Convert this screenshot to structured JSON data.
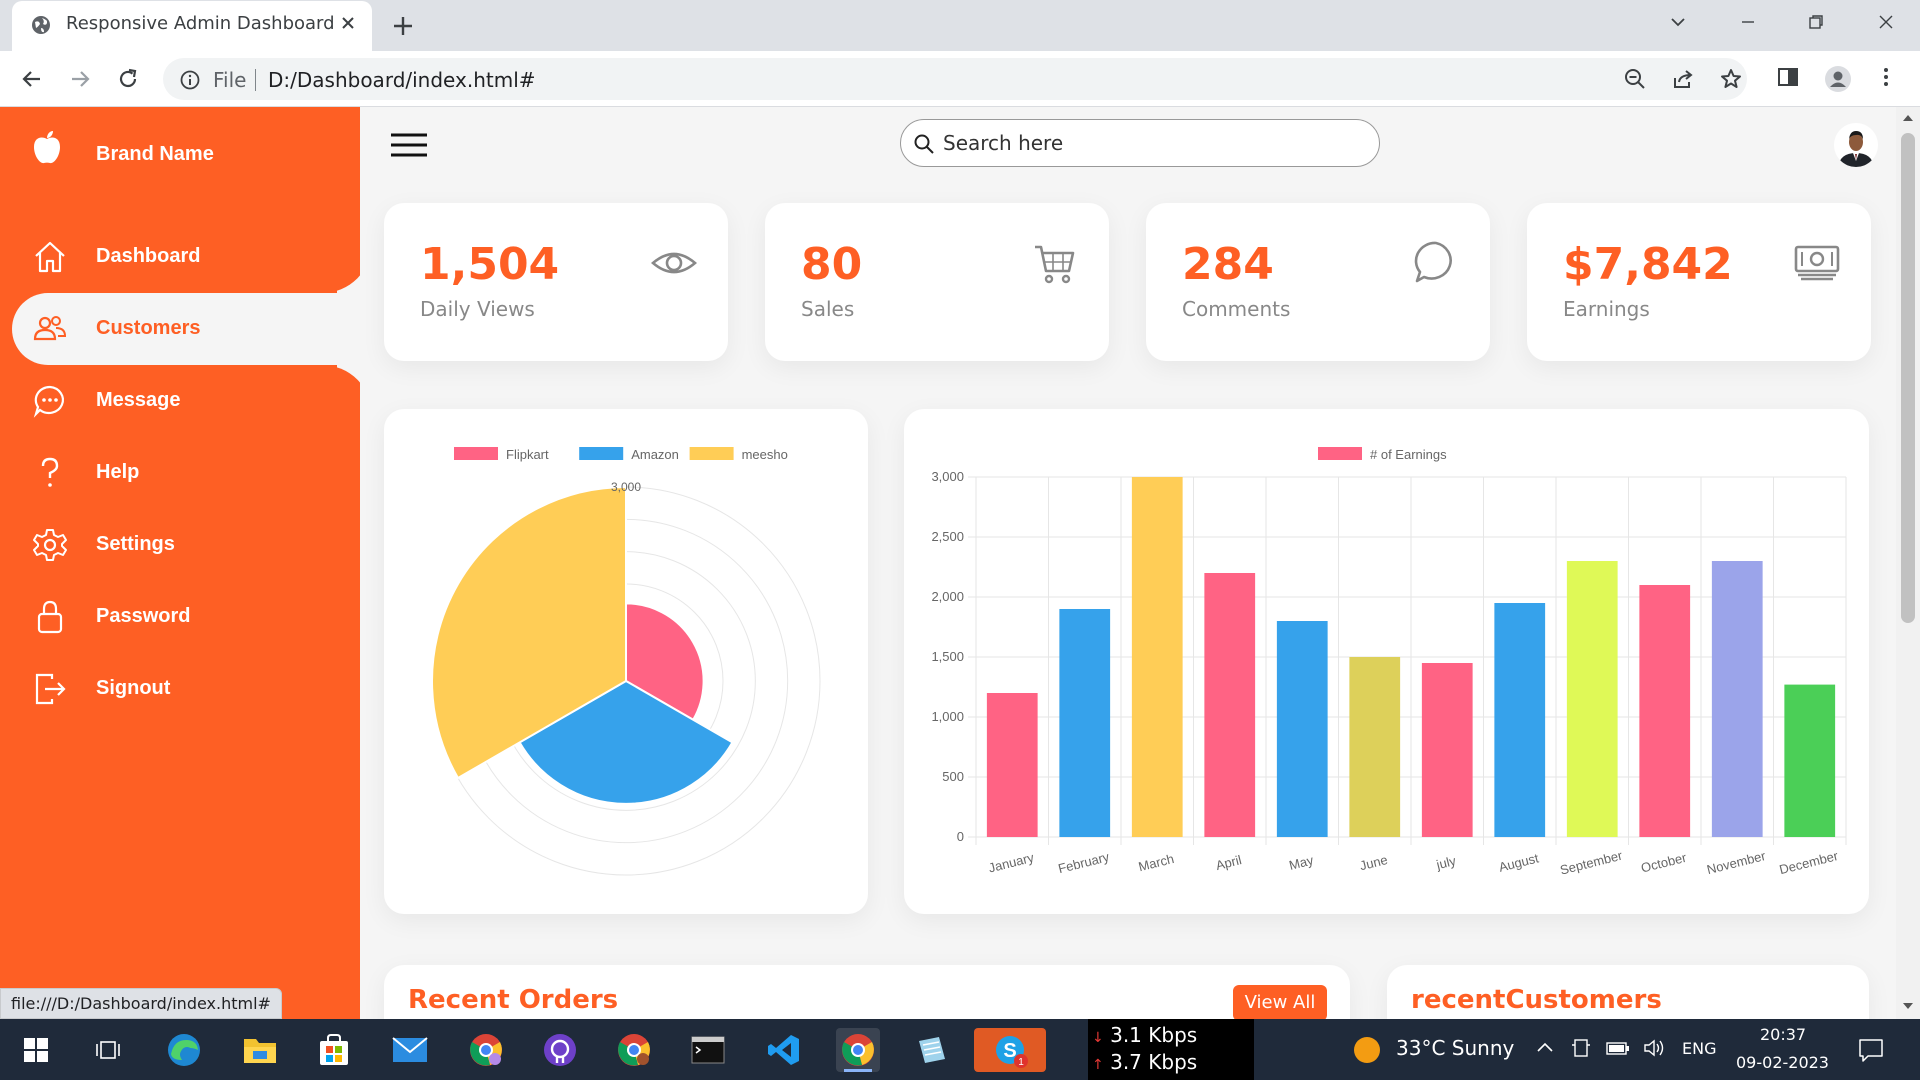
{
  "browser": {
    "tab_title": "Responsive Admin Dashboard",
    "url_scheme": "File",
    "url": "D:/Dashboard/index.html#",
    "status_url": "file:///D:/Dashboard/index.html#"
  },
  "sidebar": {
    "brand": "Brand Name",
    "items": [
      {
        "label": "Dashboard",
        "icon": "home-icon"
      },
      {
        "label": "Customers",
        "icon": "people-icon"
      },
      {
        "label": "Message",
        "icon": "chat-icon"
      },
      {
        "label": "Help",
        "icon": "help-icon"
      },
      {
        "label": "Settings",
        "icon": "settings-icon"
      },
      {
        "label": "Password",
        "icon": "lock-icon"
      },
      {
        "label": "Signout",
        "icon": "signout-icon"
      }
    ],
    "active_item": "Customers"
  },
  "topbar": {
    "search_placeholder": "Search here"
  },
  "cards": [
    {
      "number": "1,504",
      "name": "Daily Views",
      "icon": "eye-icon"
    },
    {
      "number": "80",
      "name": "Sales",
      "icon": "cart-icon"
    },
    {
      "number": "284",
      "name": "Comments",
      "icon": "comment-icon"
    },
    {
      "number": "$7,842",
      "name": "Earnings",
      "icon": "cash-icon"
    }
  ],
  "chart_data": [
    {
      "type": "pie",
      "subtype": "polar-area",
      "categories": [
        "Flipkart",
        "Amazon",
        "meesho"
      ],
      "values": [
        1200,
        1900,
        3000
      ],
      "colors": [
        "#ff6384",
        "#36a2eb",
        "#ffcd56"
      ],
      "tick_labels": [
        "3,000"
      ],
      "ylim": [
        0,
        3000
      ],
      "legend_position": "top"
    },
    {
      "type": "bar",
      "categories": [
        "January",
        "February",
        "March",
        "April",
        "May",
        "June",
        "july",
        "August",
        "September",
        "October",
        "November",
        "December"
      ],
      "series": [
        {
          "name": "# of Earnings",
          "values": [
            1200,
            1900,
            3000,
            2200,
            1800,
            1500,
            1450,
            1950,
            2300,
            2100,
            2300,
            1270
          ]
        }
      ],
      "colors": [
        "#ff6384",
        "#36a2eb",
        "#ffcd56",
        "#ff6384",
        "#36a2eb",
        "#ddd05a",
        "#ff6384",
        "#36a2eb",
        "#dff957",
        "#ff6384",
        "#9ba4ea",
        "#4bcf57"
      ],
      "ylim": [
        0,
        3000
      ],
      "yticks": [
        "0",
        "500",
        "1,000",
        "1,500",
        "2,000",
        "2,500",
        "3,000"
      ],
      "legend_color": "#ff6384",
      "grid": true,
      "legend_position": "top"
    }
  ],
  "sections": {
    "recent_orders": "Recent Orders",
    "view_all": "View All",
    "recent_customers": "recentCustomers"
  },
  "taskbar": {
    "net_down": "3.1 Kbps",
    "net_up": "3.7 Kbps",
    "weather": "33°C  Sunny",
    "language": "ENG",
    "time": "20:37",
    "date": "09-02-2023",
    "badge": "1"
  },
  "colors": {
    "accent": "#fe5f24"
  }
}
